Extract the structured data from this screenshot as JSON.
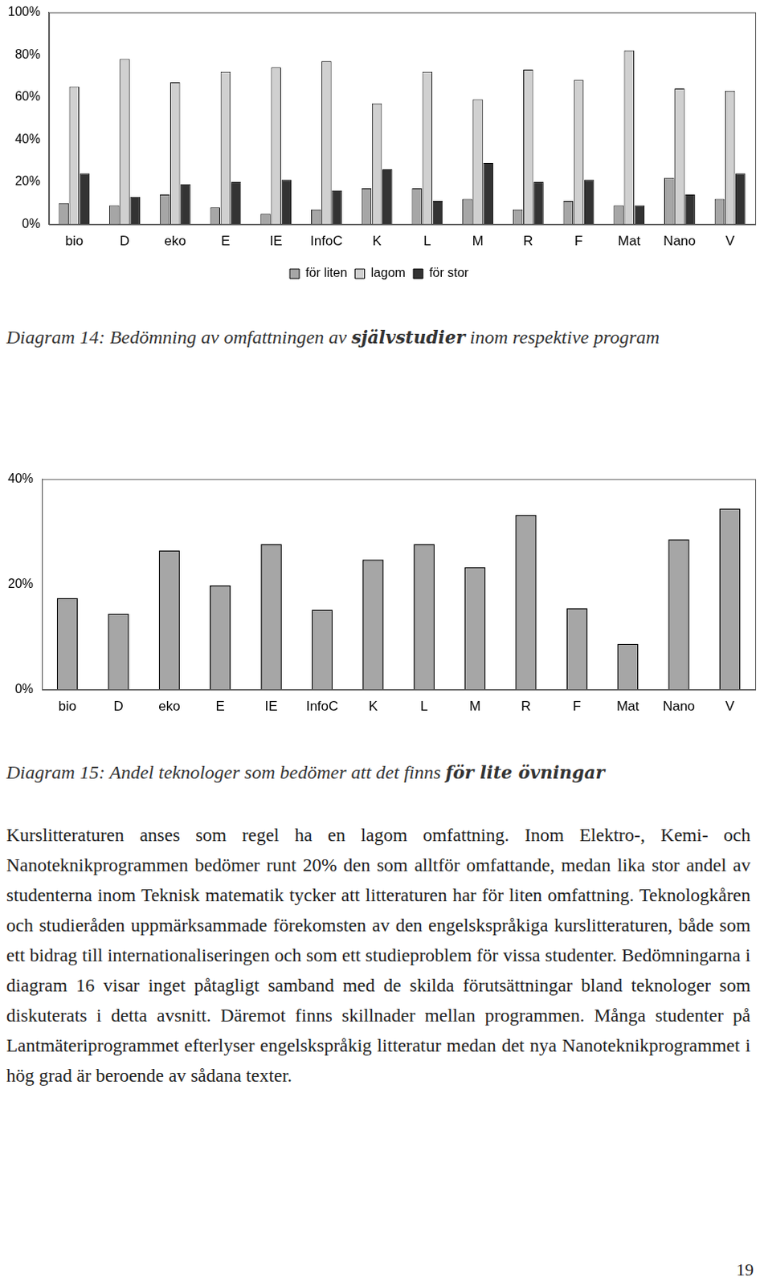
{
  "chart_data": [
    {
      "type": "bar",
      "categories": [
        "bio",
        "D",
        "eko",
        "E",
        "IE",
        "InfoC",
        "K",
        "L",
        "M",
        "R",
        "F",
        "Mat",
        "Nano",
        "V"
      ],
      "series": [
        {
          "name": "för liten",
          "color": "#a6a6a6",
          "values": [
            10,
            9,
            14,
            8,
            5,
            7,
            17,
            17,
            12,
            7,
            11,
            9,
            22,
            12
          ]
        },
        {
          "name": "lagom",
          "color": "#d0d0d0",
          "values": [
            65,
            78,
            67,
            72,
            74,
            77,
            57,
            72,
            59,
            73,
            68,
            82,
            64,
            63
          ]
        },
        {
          "name": "för stor",
          "color": "#333333",
          "values": [
            24,
            13,
            19,
            20,
            21,
            16,
            26,
            11,
            29,
            20,
            21,
            9,
            14,
            24
          ]
        }
      ],
      "ylim": [
        0,
        100
      ],
      "yticks": [
        {
          "value": 0,
          "label": "0%"
        },
        {
          "value": 20,
          "label": "20%"
        },
        {
          "value": 40,
          "label": "40%"
        },
        {
          "value": 60,
          "label": "60%"
        },
        {
          "value": 80,
          "label": "80%"
        },
        {
          "value": 100,
          "label": "100%"
        }
      ],
      "grid": false,
      "legend": "bottom"
    },
    {
      "type": "bar",
      "categories": [
        "bio",
        "D",
        "eko",
        "E",
        "IE",
        "InfoC",
        "K",
        "L",
        "M",
        "R",
        "F",
        "Mat",
        "Nano",
        "V"
      ],
      "values": [
        17.4,
        14.4,
        26.5,
        19.8,
        27.7,
        15.2,
        24.7,
        27.7,
        23.3,
        33.2,
        15.5,
        8.7,
        28.6,
        34.4
      ],
      "color": "#a6a6a6",
      "ylim": [
        0,
        40
      ],
      "yticks": [
        {
          "value": 0,
          "label": "0%"
        },
        {
          "value": 20,
          "label": "20%"
        },
        {
          "value": 40,
          "label": "40%"
        }
      ],
      "grid": false
    }
  ],
  "captions": [
    [
      {
        "text": "Diagram 14: Bedömning av omfattningen av "
      },
      {
        "text": "självstudier",
        "bold": true
      },
      {
        "text": " inom respektive program"
      }
    ],
    [
      {
        "text": "Diagram 15: Andel teknologer som bedömer att det finns "
      },
      {
        "text": "för lite övningar",
        "bold": true
      }
    ]
  ],
  "body": "Kurslitteraturen anses som regel ha en lagom omfattning. Inom Elektro-, Kemi- och Nanoteknikprogrammen bedömer runt 20% den som alltför omfattande, medan lika stor andel av studenterna inom Teknisk matematik tycker att litteraturen har för liten omfattning. Teknologkåren och studieråden uppmärksammade förekomsten av den engelskspråkiga kurslitteraturen, både som ett bidrag till internationaliseringen och som ett studieproblem för vissa studenter. Bedömningarna i diagram 16 visar inget påtagligt samband med de skilda förutsättningar bland teknologer som diskuterats i detta avsnitt. Däremot finns skillnader mellan programmen. Många studenter på Lantmäteriprogrammet efterlyser engelskspråkig litteratur medan det nya Nanoteknikprogrammet i hög grad är beroende av sådana texter.",
  "page_number": 19
}
